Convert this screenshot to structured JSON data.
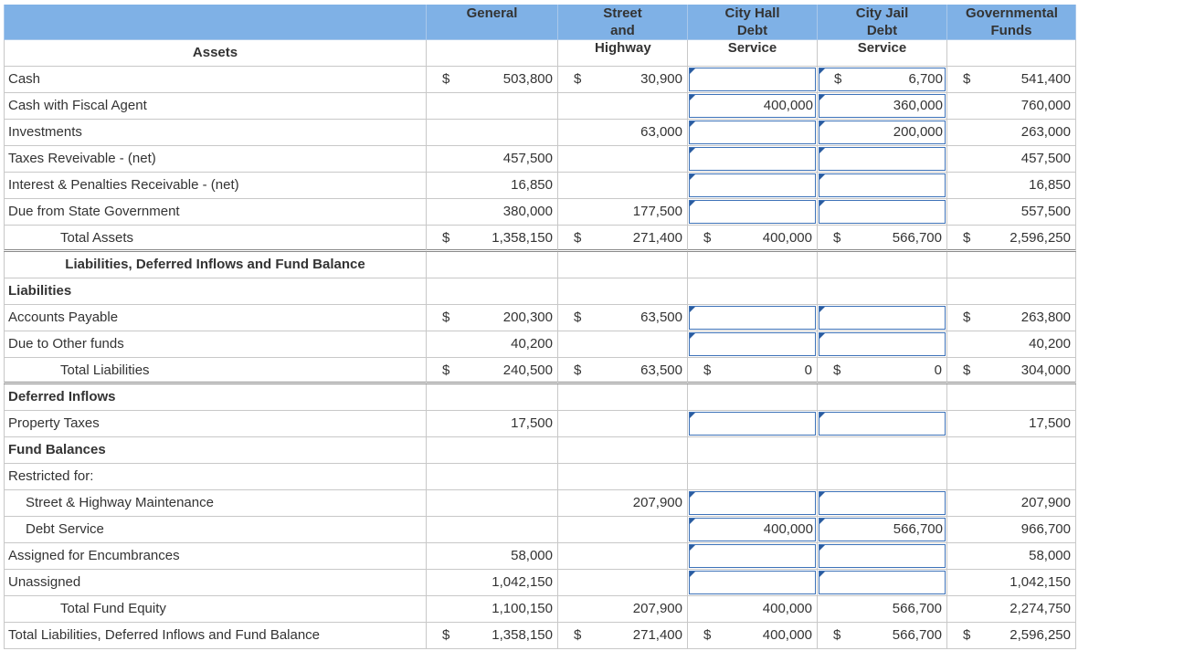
{
  "header": {
    "columns": [
      "General",
      "Street and Highway",
      "City Hall Debt Service",
      "City Jail Debt Service",
      "Governmental Funds"
    ]
  },
  "rows": [
    {
      "label": "Assets",
      "style": "heading"
    },
    {
      "label": "Cash",
      "cells": [
        {
          "currency": "$",
          "amount": "503,800"
        },
        {
          "currency": "$",
          "amount": "30,900"
        },
        {
          "input": true
        },
        {
          "currency": "$",
          "amount": "6,700",
          "input": true
        },
        {
          "currency": "$",
          "amount": "541,400"
        }
      ]
    },
    {
      "label": "Cash with Fiscal Agent",
      "cells": [
        null,
        null,
        {
          "amount": "400,000",
          "input": true
        },
        {
          "amount": "360,000",
          "input": true
        },
        {
          "amount": "760,000"
        }
      ]
    },
    {
      "label": "Investments",
      "cells": [
        null,
        {
          "amount": "63,000"
        },
        {
          "input": true
        },
        {
          "amount": "200,000",
          "input": true
        },
        {
          "amount": "263,000"
        }
      ]
    },
    {
      "label": "Taxes Reveivable - (net)",
      "cells": [
        {
          "amount": "457,500"
        },
        null,
        {
          "input": true
        },
        {
          "input": true
        },
        {
          "amount": "457,500"
        }
      ]
    },
    {
      "label": "Interest & Penalties Receivable - (net)",
      "cells": [
        {
          "amount": "16,850"
        },
        null,
        {
          "input": true
        },
        {
          "input": true
        },
        {
          "amount": "16,850"
        }
      ]
    },
    {
      "label": "Due from State Government",
      "cells": [
        {
          "amount": "380,000"
        },
        {
          "amount": "177,500"
        },
        {
          "input": true
        },
        {
          "input": true
        },
        {
          "amount": "557,500"
        }
      ]
    },
    {
      "label": "Total Assets",
      "indent": 2,
      "total": true,
      "cells": [
        {
          "currency": "$",
          "amount": "1,358,150"
        },
        {
          "currency": "$",
          "amount": "271,400"
        },
        {
          "currency": "$",
          "amount": "400,000"
        },
        {
          "currency": "$",
          "amount": "566,700"
        },
        {
          "currency": "$",
          "amount": "2,596,250"
        }
      ]
    },
    {
      "label": "Liabilities, Deferred Inflows and Fund Balance",
      "style": "heading"
    },
    {
      "label": "Liabilities",
      "style": "bold"
    },
    {
      "label": "Accounts Payable",
      "cells": [
        {
          "currency": "$",
          "amount": "200,300"
        },
        {
          "currency": "$",
          "amount": "63,500"
        },
        {
          "input": true
        },
        {
          "input": true
        },
        {
          "currency": "$",
          "amount": "263,800"
        }
      ]
    },
    {
      "label": "Due to Other funds",
      "cells": [
        {
          "amount": "40,200"
        },
        null,
        {
          "input": true
        },
        {
          "input": true
        },
        {
          "amount": "40,200"
        }
      ]
    },
    {
      "label": "Total Liabilities",
      "indent": 2,
      "total": true,
      "cells": [
        {
          "currency": "$",
          "amount": "240,500"
        },
        {
          "currency": "$",
          "amount": "63,500"
        },
        {
          "currency": "$",
          "amount": "0"
        },
        {
          "currency": "$",
          "amount": "0"
        },
        {
          "currency": "$",
          "amount": "304,000"
        }
      ]
    },
    {
      "label": "Deferred Inflows",
      "style": "bold"
    },
    {
      "label": "Property Taxes",
      "cells": [
        {
          "amount": "17,500"
        },
        null,
        {
          "input": true
        },
        {
          "input": true
        },
        {
          "amount": "17,500"
        }
      ]
    },
    {
      "label": "Fund Balances",
      "style": "bold"
    },
    {
      "label": "Restricted for:"
    },
    {
      "label": "Street & Highway Maintenance",
      "indent": 1,
      "cells": [
        null,
        {
          "amount": "207,900"
        },
        {
          "input": true
        },
        {
          "input": true
        },
        {
          "amount": "207,900"
        }
      ]
    },
    {
      "label": "Debt Service",
      "indent": 1,
      "cells": [
        null,
        null,
        {
          "amount": "400,000",
          "input": true
        },
        {
          "amount": "566,700",
          "input": true
        },
        {
          "amount": "966,700"
        }
      ]
    },
    {
      "label": "Assigned for Encumbrances",
      "cells": [
        {
          "amount": "58,000"
        },
        null,
        {
          "input": true
        },
        {
          "input": true
        },
        {
          "amount": "58,000"
        }
      ]
    },
    {
      "label": "Unassigned",
      "cells": [
        {
          "amount": "1,042,150"
        },
        null,
        {
          "input": true
        },
        {
          "input": true
        },
        {
          "amount": "1,042,150"
        }
      ]
    },
    {
      "label": "Total Fund Equity",
      "indent": 2,
      "cells": [
        {
          "amount": "1,100,150"
        },
        {
          "amount": "207,900"
        },
        {
          "amount": "400,000"
        },
        {
          "amount": "566,700"
        },
        {
          "amount": "2,274,750"
        }
      ]
    },
    {
      "label": "Total Liabilities, Deferred Inflows and Fund Balance",
      "cells": [
        {
          "currency": "$",
          "amount": "1,358,150"
        },
        {
          "currency": "$",
          "amount": "271,400"
        },
        {
          "currency": "$",
          "amount": "400,000"
        },
        {
          "currency": "$",
          "amount": "566,700"
        },
        {
          "currency": "$",
          "amount": "2,596,250"
        }
      ]
    }
  ]
}
